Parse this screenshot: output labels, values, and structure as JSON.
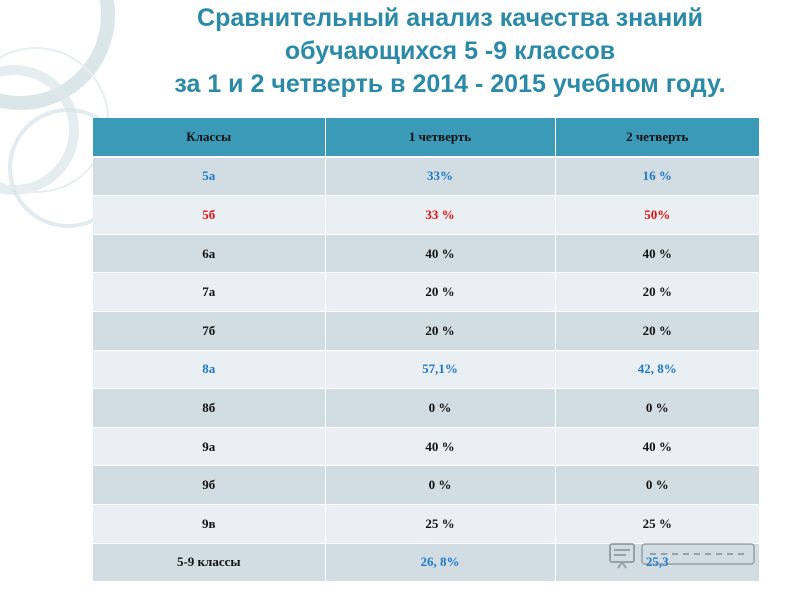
{
  "title": {
    "line1": "Сравнительный анализ качества знаний",
    "line2": "обучающихся 5 -9 классов",
    "line3": "за  1 и 2 четверть в 2014 - 2015 учебном году."
  },
  "table": {
    "headers": [
      "Классы",
      "1 четверть",
      "2 четверть"
    ],
    "rows": [
      {
        "cls": "5а",
        "q1": "33%",
        "q2": "16 %",
        "color": "blue"
      },
      {
        "cls": "5б",
        "q1": "33 %",
        "q2": "50%",
        "color": "red"
      },
      {
        "cls": "6а",
        "q1": "40 %",
        "q2": "40 %",
        "color": "black"
      },
      {
        "cls": "7а",
        "q1": "20 %",
        "q2": "20 %",
        "color": "black"
      },
      {
        "cls": "7б",
        "q1": "20 %",
        "q2": "20 %",
        "color": "black"
      },
      {
        "cls": "8а",
        "q1": "57,1%",
        "q2": "42, 8%",
        "color": "blue"
      },
      {
        "cls": "8б",
        "q1": "0 %",
        "q2": "0 %",
        "color": "black"
      },
      {
        "cls": "9а",
        "q1": "40 %",
        "q2": "40 %",
        "color": "black"
      },
      {
        "cls": "9б",
        "q1": "0 %",
        "q2": "0 %",
        "color": "black"
      },
      {
        "cls": "9в",
        "q1": "25 %",
        "q2": "25 %",
        "color": "black"
      },
      {
        "cls": "5-9 классы",
        "q1": "26, 8%",
        "q2": "25,3",
        "color": "mixed"
      }
    ]
  },
  "colors": {
    "title": "#2a8aa8",
    "header_bg": "#3a9ab8",
    "row_dark": "#d1dde3",
    "row_light": "#e9eff2",
    "blue_text": "#1f78c8",
    "red_text": "#e01010"
  },
  "watermark": {
    "icon": "presentation-board-icon"
  }
}
